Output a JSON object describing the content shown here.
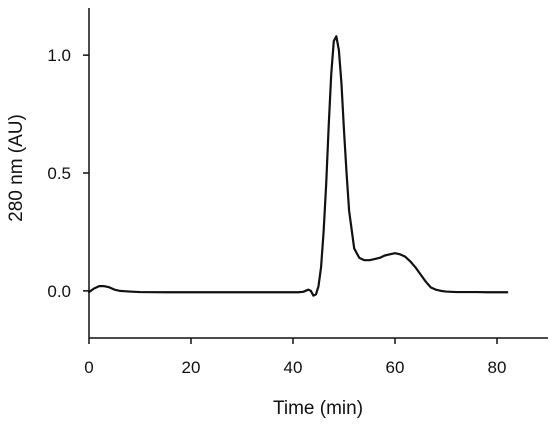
{
  "chart_data": {
    "type": "line",
    "title": "",
    "xlabel": "Time (min)",
    "ylabel": "280 nm (AU)",
    "xlim": [
      0,
      90
    ],
    "ylim": [
      -0.2,
      1.2
    ],
    "xticks": [
      0,
      20,
      40,
      60,
      80
    ],
    "xtick_labels": [
      "0",
      "20",
      "40",
      "60",
      "80"
    ],
    "yticks": [
      0.0,
      0.5,
      1.0
    ],
    "ytick_labels": [
      "0.0",
      "0.5",
      "1.0"
    ],
    "grid": false,
    "legend": "none",
    "line_color": "#111111",
    "series": [
      {
        "x": [
          0,
          1,
          2,
          3,
          4,
          5,
          6,
          8,
          10,
          15,
          20,
          25,
          30,
          35,
          38,
          40,
          41,
          42,
          43,
          43.5,
          44,
          44.5,
          45,
          45.5,
          46,
          46.5,
          47,
          47.5,
          48,
          48.5,
          49,
          49.5,
          50,
          50.5,
          51,
          52,
          53,
          54,
          55,
          56,
          57,
          58,
          59,
          60,
          61,
          62,
          63,
          64,
          65,
          66,
          67,
          68,
          69,
          70,
          71,
          72,
          74,
          76,
          78,
          80,
          82
        ],
        "y": [
          -0.005,
          0.01,
          0.02,
          0.02,
          0.015,
          0.005,
          0.0,
          -0.003,
          -0.005,
          -0.006,
          -0.006,
          -0.006,
          -0.006,
          -0.006,
          -0.006,
          -0.006,
          -0.006,
          -0.004,
          0.005,
          0.0,
          -0.02,
          -0.015,
          0.02,
          0.1,
          0.25,
          0.45,
          0.7,
          0.92,
          1.06,
          1.08,
          1.02,
          0.88,
          0.68,
          0.5,
          0.34,
          0.18,
          0.14,
          0.13,
          0.13,
          0.135,
          0.14,
          0.15,
          0.155,
          0.16,
          0.155,
          0.145,
          0.125,
          0.1,
          0.07,
          0.04,
          0.015,
          0.005,
          0.0,
          -0.003,
          -0.004,
          -0.005,
          -0.005,
          -0.005,
          -0.006,
          -0.006,
          -0.006
        ]
      }
    ]
  }
}
